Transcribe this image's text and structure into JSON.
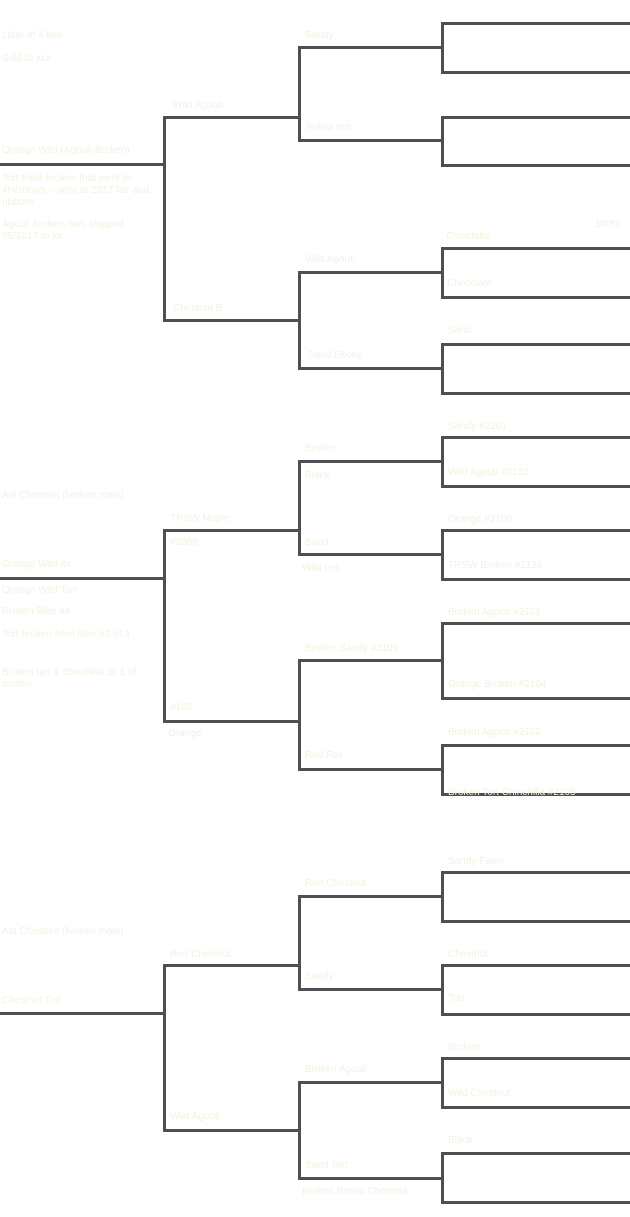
{
  "groups": [
    {
      "notes": [
        "Litter of 4 kits",
        "Sold to xxx",
        "Orange Wild (Agouti Broken)",
        "Tort triple broken that went to 4H/shows – wins at 2017 fair and ribbons",
        "Agouti broken, tan, shipped 05/2017 to xx"
      ],
      "parent1": "Wild Agouti",
      "parent2": "Chestnut B",
      "gp": [
        "Sandy",
        "Yellow tort",
        "Wild Agouti",
        "Sand Ebony"
      ],
      "ggp": [
        "",
        "",
        "Chinchilla",
        "",
        "Ebony",
        "Chocolate",
        "Sand",
        "",
        "100%"
      ]
    },
    {
      "notes": [
        "Ast Chestnut (broken male)",
        "Orange Wild 4x",
        "Orange Wild Tort",
        "Broken Blue x4",
        "Tort broken from litter #2 of 3",
        "Broken tan & chinchilla 3x 1 of mother"
      ],
      "parent1": "TRSW Maple",
      "parent1b": "#2688",
      "parent2": "#162",
      "parent2b": "Orange",
      "gp": [
        "Broken",
        "Black",
        "Sand",
        "Wild tort",
        "Black",
        "Broken Sandy #2109",
        "Red Fox"
      ],
      "ggp": [
        "Sandy #2201",
        "Wild Agouti #2102",
        "Orange #2100",
        "TRSW Broken #2129",
        "Broken Agouti #2101",
        "Orange Broken #2104",
        "Broken Agouti #2102",
        "Broken Tort Chinchilla #2105"
      ]
    },
    {
      "notes": [
        "Ast Chestnut (broken male)",
        "Chestnut Tort"
      ],
      "parent1": "Red Chestnut",
      "parent2": "Wild Agouti",
      "gp": [
        "Red Chestnut",
        "Sandy",
        "Broken Agouti",
        "Sand Tort",
        "Broken Brown Chestnut"
      ],
      "ggp": [
        "Sandy Fawn",
        "Chestnut",
        "Tort",
        "Broken",
        "Wild Chestnut",
        "Black"
      ]
    }
  ]
}
